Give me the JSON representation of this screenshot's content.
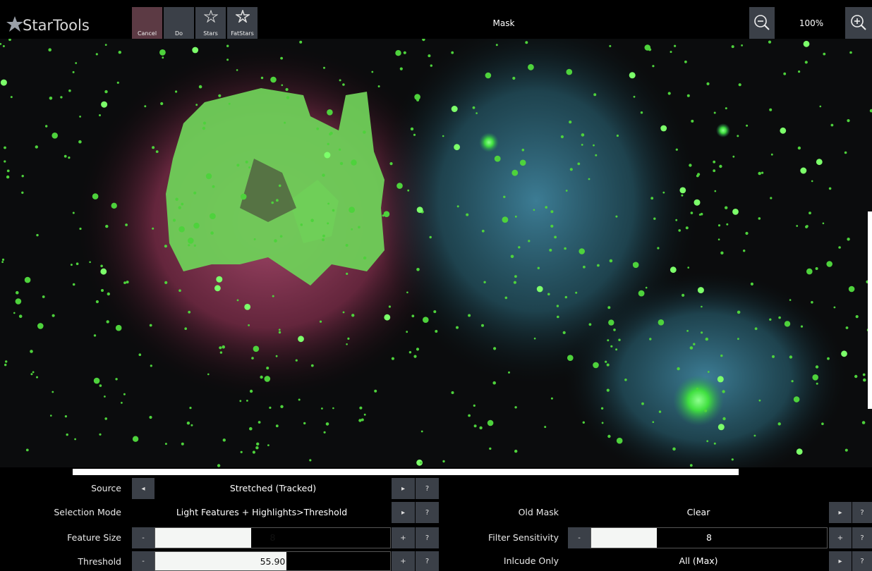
{
  "toolbar": {
    "logo": "StarTools",
    "buttons": [
      "Cancel",
      "Do",
      "Stars",
      "FatStars"
    ],
    "title": "Mask",
    "zoom": "100%"
  },
  "left": [
    {
      "label": "Source",
      "value": "Stretched (Tracked)"
    },
    {
      "label": "Selection Mode",
      "value": "Light Features + Highlights>Threshold"
    },
    {
      "label": "Feature Size",
      "value": "8"
    },
    {
      "label": "Threshold",
      "value": "55.90"
    }
  ],
  "right": [
    {
      "label": "Old Mask",
      "value": "Clear"
    },
    {
      "label": "Filter Sensitivity",
      "value": "8"
    },
    {
      "label": "Inlcude Only",
      "value": "All (Max)"
    }
  ],
  "controls": {
    "prev": "◂",
    "next": "▸",
    "help": "?",
    "minus": "-",
    "plus": "+"
  }
}
